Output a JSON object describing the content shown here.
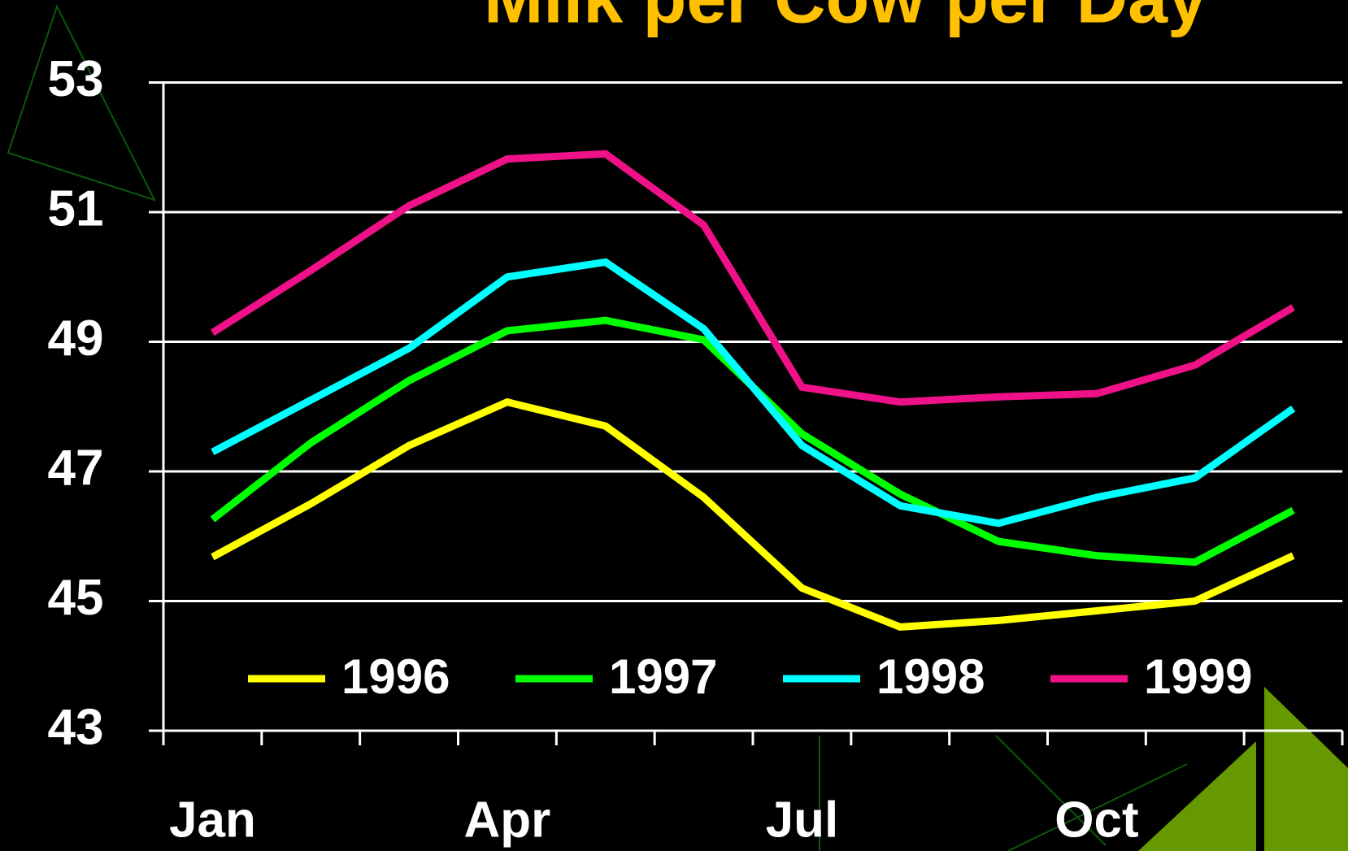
{
  "chart_data": {
    "type": "line",
    "title": "Milk per Cow per Day",
    "categories": [
      "Jan",
      null,
      null,
      "Apr",
      null,
      null,
      "Jul",
      null,
      null,
      "Oct",
      null,
      null
    ],
    "series": [
      {
        "name": "1996",
        "color": "#ffff00",
        "values": [
          45.68,
          46.5,
          47.4,
          48.07,
          47.7,
          46.6,
          45.2,
          44.6,
          44.7,
          44.85,
          45.0,
          45.7
        ]
      },
      {
        "name": "1997",
        "color": "#00ff00",
        "values": [
          46.26,
          47.44,
          48.4,
          49.17,
          49.33,
          49.03,
          47.58,
          46.65,
          45.92,
          45.7,
          45.6,
          46.4
        ]
      },
      {
        "name": "1998",
        "color": "#00ffff",
        "values": [
          47.3,
          48.1,
          48.9,
          50.0,
          50.23,
          49.2,
          47.4,
          46.47,
          46.2,
          46.6,
          46.9,
          47.97
        ]
      },
      {
        "name": "1999",
        "color": "#ee1188",
        "values": [
          49.14,
          50.1,
          51.1,
          51.82,
          51.9,
          50.8,
          48.3,
          48.07,
          48.15,
          48.2,
          48.64,
          49.53
        ]
      }
    ],
    "ylim": [
      43,
      53
    ],
    "yticks": [
      43,
      45,
      47,
      49,
      51,
      53
    ],
    "grid": true,
    "legend": "bottom"
  }
}
